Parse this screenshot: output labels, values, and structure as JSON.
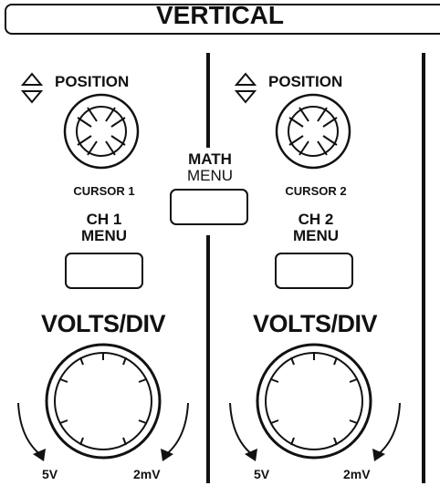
{
  "section": {
    "title": "VERTICAL"
  },
  "channel1": {
    "position_label": "POSITION",
    "cursor_label": "CURSOR 1",
    "menu_line1": "CH 1",
    "menu_line2": "MENU",
    "volts_label": "VOLTS/DIV",
    "range_low": "5V",
    "range_high": "2mV"
  },
  "math": {
    "line1": "MATH",
    "line2": "MENU"
  },
  "channel2": {
    "position_label": "POSITION",
    "cursor_label": "CURSOR 2",
    "menu_line1": "CH 2",
    "menu_line2": "MENU",
    "volts_label": "VOLTS/DIV",
    "range_low": "5V",
    "range_high": "2mV"
  },
  "icons": {
    "position_up": "triangle-up-icon",
    "position_down": "triangle-down-icon",
    "range_arrow": "curved-arrow-icon"
  },
  "colors": {
    "ink": "#111111",
    "background": "#ffffff"
  }
}
